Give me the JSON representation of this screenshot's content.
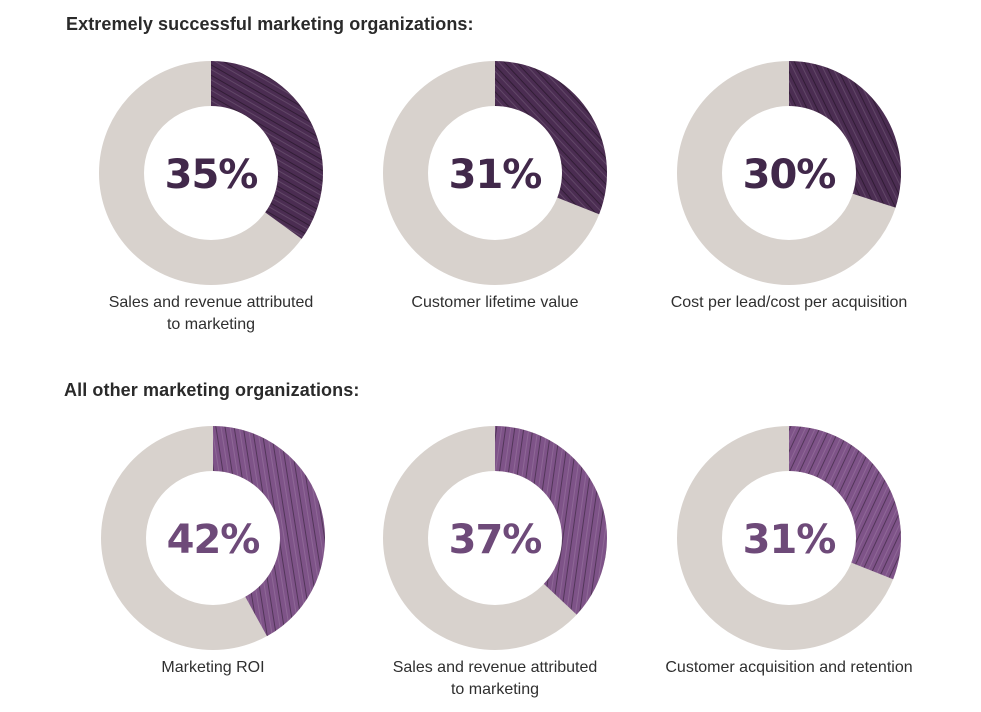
{
  "section_top": {
    "title": "Extremely successful marketing organizations:"
  },
  "section_bottom": {
    "title": "All other marketing organizations:"
  },
  "colors": {
    "top_segment": "#4b2d52",
    "top_text": "#41284a",
    "bottom_segment": "#7e5388",
    "bottom_text": "#6e4a79",
    "remainder": "#d8d2cd"
  },
  "chart_data": [
    {
      "type": "pie",
      "group": "Extremely successful marketing organizations:",
      "value": 35,
      "label": "35%",
      "caption": [
        "Sales and revenue attributed",
        "to marketing"
      ]
    },
    {
      "type": "pie",
      "group": "Extremely successful marketing organizations:",
      "value": 31,
      "label": "31%",
      "caption": [
        "Customer lifetime value"
      ]
    },
    {
      "type": "pie",
      "group": "Extremely successful marketing organizations:",
      "value": 30,
      "label": "30%",
      "caption": [
        "Cost per lead/cost per acquisition"
      ]
    },
    {
      "type": "pie",
      "group": "All other marketing organizations:",
      "value": 42,
      "label": "42%",
      "caption": [
        "Marketing ROI"
      ]
    },
    {
      "type": "pie",
      "group": "All other marketing organizations:",
      "value": 37,
      "label": "37%",
      "caption": [
        "Sales and revenue attributed",
        "to marketing"
      ]
    },
    {
      "type": "pie",
      "group": "All other marketing organizations:",
      "value": 31,
      "label": "31%",
      "caption": [
        "Customer acquisition and retention"
      ]
    }
  ]
}
